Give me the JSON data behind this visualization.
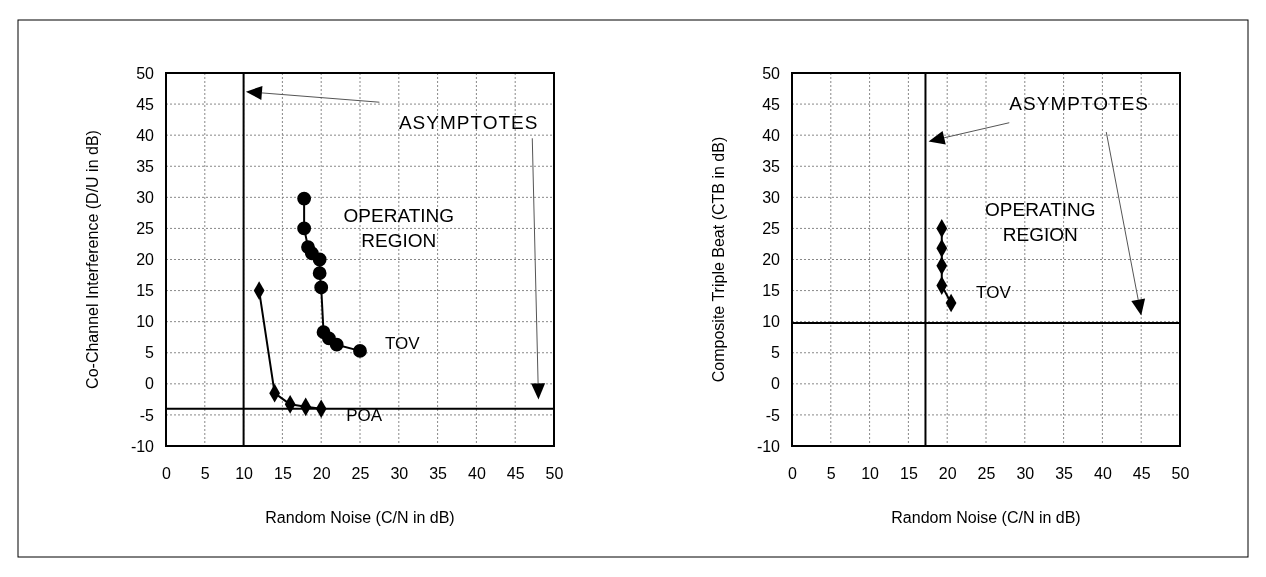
{
  "chart_data": [
    {
      "type": "line",
      "xlabel": "Random Noise (C/N in dB)",
      "ylabel": "Co-Channel Interference (D/U in dB)",
      "xlim": [
        0,
        50
      ],
      "ylim": [
        -10,
        50
      ],
      "xticks": [
        0,
        5,
        10,
        15,
        20,
        25,
        30,
        35,
        40,
        45,
        50
      ],
      "yticks": [
        -10,
        -5,
        0,
        5,
        10,
        15,
        20,
        25,
        30,
        35,
        40,
        45,
        50
      ],
      "grid": true,
      "line_style": "solid",
      "series": [
        {
          "name": "TOV",
          "color": "#000000",
          "marker": "circle",
          "x": [
            17.8,
            17.8,
            18.3,
            18.8,
            19.8,
            19.8,
            20,
            20.3,
            21,
            22,
            25
          ],
          "values": [
            29.8,
            25,
            22,
            21,
            20,
            17.8,
            15.5,
            8.3,
            7.3,
            6.3,
            5.3
          ]
        },
        {
          "name": "POA",
          "color": "#000000",
          "marker": "diamond",
          "x": [
            12,
            14,
            16,
            18,
            20
          ],
          "values": [
            15,
            -1.5,
            -3.3,
            -3.7,
            -4
          ]
        }
      ],
      "ref_lines": [
        {
          "axis": "x",
          "value": 10,
          "color": "#000000"
        },
        {
          "axis": "y",
          "value": -4,
          "color": "#000000"
        }
      ],
      "annotations": [
        "ASYMPTOTES",
        "OPERATING REGION"
      ]
    },
    {
      "type": "line",
      "xlabel": "Random Noise (C/N in dB)",
      "ylabel": "Composite Triple Beat (CTB in dB)",
      "xlim": [
        0,
        50
      ],
      "ylim": [
        -10,
        50
      ],
      "xticks": [
        0,
        5,
        10,
        15,
        20,
        25,
        30,
        35,
        40,
        45,
        50
      ],
      "yticks": [
        -10,
        -5,
        0,
        5,
        10,
        15,
        20,
        25,
        30,
        35,
        40,
        45,
        50
      ],
      "grid": true,
      "line_style": "solid",
      "series": [
        {
          "name": "TOV",
          "color": "#000000",
          "marker": "diamond",
          "x": [
            19.3,
            19.3,
            19.3,
            19.3,
            20.5
          ],
          "values": [
            25,
            21.8,
            19,
            15.8,
            13
          ]
        }
      ],
      "ref_lines": [
        {
          "axis": "x",
          "value": 17.2,
          "color": "#000000"
        },
        {
          "axis": "y",
          "value": 9.8,
          "color": "#000000"
        }
      ],
      "annotations": [
        "ASYMPTOTES",
        "OPERATING REGION"
      ]
    }
  ]
}
